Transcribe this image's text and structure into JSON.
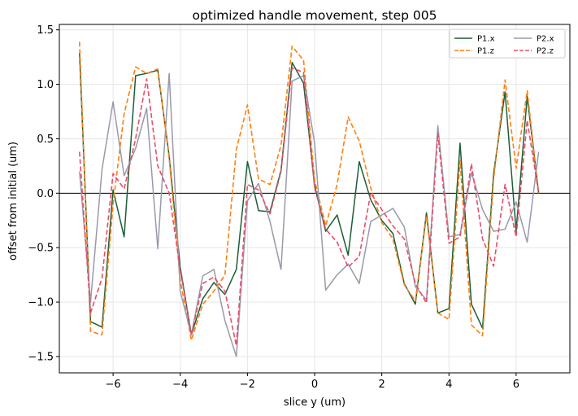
{
  "chart_data": {
    "type": "line",
    "title": "optimized handle movement, step 005",
    "xlabel": "slice y (um)",
    "ylabel": "offset from initial (um)",
    "xlim": [
      -7.6,
      7.6
    ],
    "ylim": [
      -1.65,
      1.55
    ],
    "xticks": [
      -6,
      -4,
      -2,
      0,
      2,
      4,
      6
    ],
    "xtick_labels": [
      "−6",
      "−4",
      "−2",
      "0",
      "2",
      "4",
      "6"
    ],
    "yticks": [
      -1.5,
      -1.0,
      -0.5,
      0.0,
      0.5,
      1.0,
      1.5
    ],
    "ytick_labels": [
      "−1.5",
      "−1.0",
      "−0.5",
      "0.0",
      "0.5",
      "1.0",
      "1.5"
    ],
    "grid": true,
    "zero_line": true,
    "legend_position": "top-right",
    "legend_columns": 2,
    "x": [
      -7.0,
      -6.67,
      -6.33,
      -6.0,
      -5.67,
      -5.33,
      -5.0,
      -4.67,
      -4.33,
      -4.0,
      -3.67,
      -3.33,
      -3.0,
      -2.67,
      -2.33,
      -2.0,
      -1.67,
      -1.33,
      -1.0,
      -0.67,
      -0.33,
      0.0,
      0.33,
      0.67,
      1.0,
      1.33,
      1.67,
      2.0,
      2.33,
      2.67,
      3.0,
      3.33,
      3.67,
      4.0,
      4.33,
      4.67,
      5.0,
      5.33,
      5.67,
      6.0,
      6.33,
      6.67,
      7.0
    ],
    "series": [
      {
        "name": "P1.x",
        "color": "#1b5e35",
        "dash": "solid",
        "values": [
          1.29,
          -1.18,
          -1.23,
          0.03,
          -0.4,
          1.08,
          1.1,
          1.13,
          0.34,
          -0.68,
          -1.3,
          -0.97,
          -0.82,
          -0.93,
          -0.7,
          0.29,
          -0.16,
          -0.17,
          0.21,
          1.2,
          1.01,
          0.07,
          -0.35,
          -0.2,
          -0.57,
          0.29,
          -0.06,
          -0.25,
          -0.37,
          -0.83,
          -1.02,
          -0.18,
          -1.1,
          -1.06,
          0.46,
          -1.02,
          -1.24,
          0.18,
          0.93,
          -0.35,
          0.89,
          0.0,
          0.0
        ]
      },
      {
        "name": "P1.z",
        "color": "#ff7f0e",
        "dash": "dashed",
        "values": [
          1.39,
          -1.27,
          -1.3,
          -0.1,
          0.73,
          1.16,
          1.1,
          1.14,
          0.32,
          -0.8,
          -1.35,
          -1.02,
          -0.9,
          -0.75,
          0.4,
          0.81,
          0.13,
          0.08,
          0.44,
          1.35,
          1.22,
          0.12,
          -0.3,
          0.08,
          0.7,
          0.48,
          0.05,
          -0.27,
          -0.42,
          -0.84,
          -0.99,
          -0.21,
          -1.1,
          -1.16,
          0.3,
          -1.21,
          -1.31,
          0.13,
          1.04,
          0.23,
          0.94,
          0.0,
          0.0
        ]
      },
      {
        "name": "P2.x",
        "color": "#9999aa",
        "dash": "solid",
        "values": [
          0.2,
          -1.0,
          0.22,
          0.84,
          0.16,
          0.41,
          0.78,
          -0.51,
          1.1,
          -0.9,
          -1.3,
          -0.76,
          -0.7,
          -1.17,
          -1.5,
          -0.07,
          0.09,
          -0.26,
          -0.7,
          1.03,
          1.08,
          0.46,
          -0.89,
          -0.75,
          -0.65,
          -0.83,
          -0.26,
          -0.2,
          -0.14,
          -0.31,
          -0.86,
          -0.98,
          0.62,
          -0.4,
          -0.38,
          0.19,
          -0.15,
          -0.35,
          -0.33,
          -0.08,
          -0.45,
          0.38,
          0.0
        ]
      },
      {
        "name": "P2.z",
        "color": "#e84d6a",
        "dash": "dashed",
        "values": [
          0.38,
          -1.1,
          -0.78,
          0.18,
          0.04,
          0.5,
          1.05,
          0.25,
          0.0,
          -0.7,
          -1.3,
          -0.83,
          -0.77,
          -0.9,
          -1.4,
          0.08,
          0.03,
          -0.19,
          0.2,
          1.15,
          1.11,
          0.05,
          -0.33,
          -0.45,
          -0.68,
          -0.58,
          0.0,
          -0.15,
          -0.3,
          -0.42,
          -0.83,
          -1.01,
          0.55,
          -0.46,
          -0.4,
          0.27,
          -0.42,
          -0.67,
          0.08,
          -0.4,
          0.67,
          0.0,
          0.0
        ]
      }
    ]
  }
}
